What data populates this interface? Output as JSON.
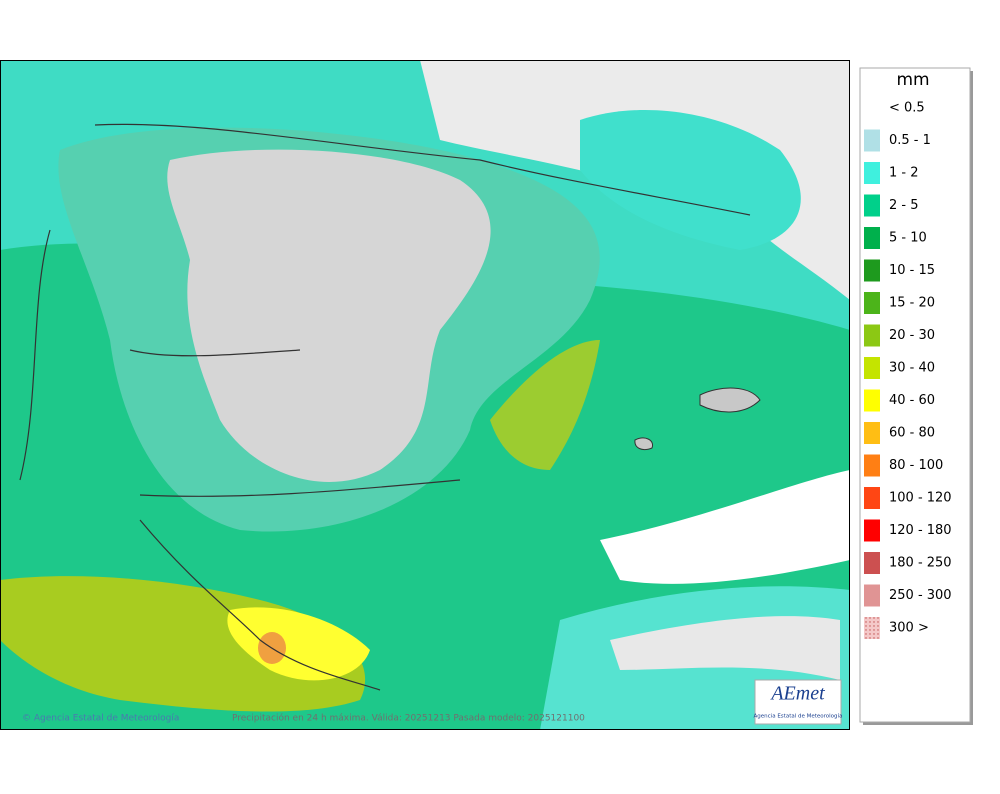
{
  "legend": {
    "title": "mm",
    "items": [
      {
        "label": "< 0.5",
        "color": null
      },
      {
        "label": "0.5 - 1",
        "color": "#b0e0e6"
      },
      {
        "label": "1 - 2",
        "color": "#3ff0de"
      },
      {
        "label": "2 - 5",
        "color": "#00d08a"
      },
      {
        "label": "5 - 10",
        "color": "#00b04c"
      },
      {
        "label": "10 - 15",
        "color": "#1e9a1e"
      },
      {
        "label": "15 - 20",
        "color": "#4cb41a"
      },
      {
        "label": "20 - 30",
        "color": "#8cc814"
      },
      {
        "label": "30 - 40",
        "color": "#c4e400"
      },
      {
        "label": "40 - 60",
        "color": "#ffff00"
      },
      {
        "label": "60 - 80",
        "color": "#ffbe14"
      },
      {
        "label": "80 - 100",
        "color": "#ff7f14"
      },
      {
        "label": "100 - 120",
        "color": "#ff4614"
      },
      {
        "label": "120 - 180",
        "color": "#ff0000"
      },
      {
        "label": "180 - 250",
        "color": "#cc5050"
      },
      {
        "label": "250 - 300",
        "color": "#e09494"
      },
      {
        "label": "300 >",
        "color": "#f4c8c8"
      }
    ]
  },
  "footer": {
    "credit": "© Agencia Estatal de Meteorología",
    "caption": "Precipitación en 24 h máxima. Válida: 20251213 Pasada modelo: 2025121100"
  },
  "logo": {
    "name": "AEmet",
    "subtitle": "Agencia Estatal de Meteorología"
  }
}
